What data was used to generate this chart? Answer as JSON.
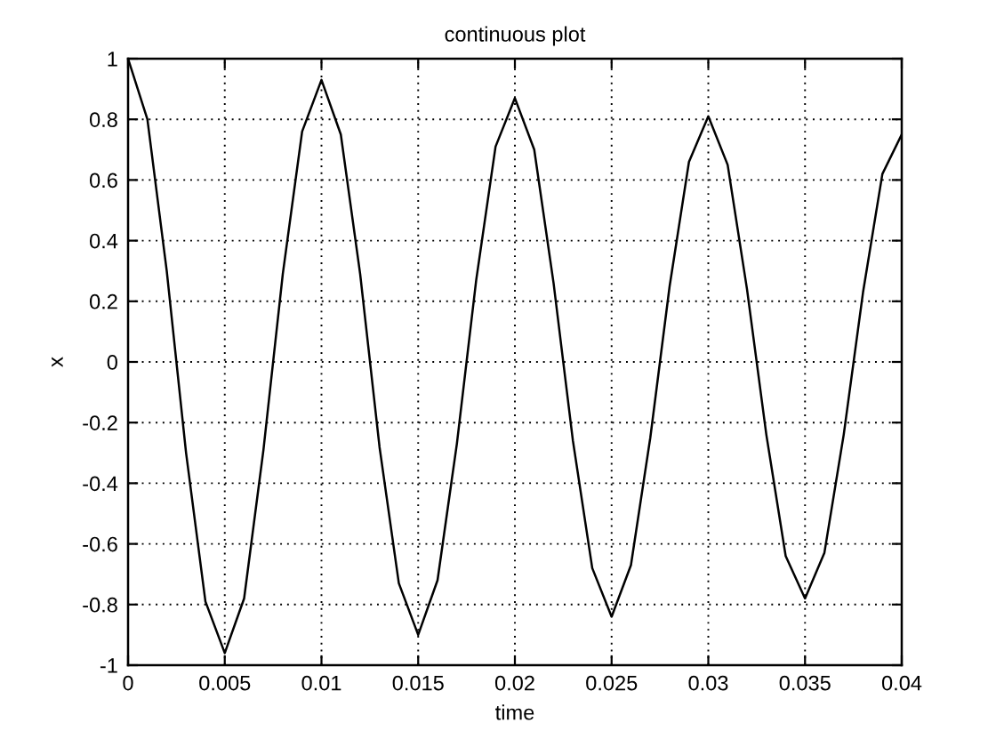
{
  "chart_data": {
    "type": "line",
    "title": "continuous plot",
    "xlabel": "time",
    "ylabel": "x",
    "x": [
      0,
      0.001,
      0.002,
      0.003,
      0.004,
      0.005,
      0.006,
      0.007,
      0.008,
      0.009,
      0.01,
      0.011,
      0.012,
      0.013,
      0.014,
      0.015,
      0.016,
      0.017,
      0.018,
      0.019,
      0.02,
      0.021,
      0.022,
      0.023,
      0.024,
      0.025,
      0.026,
      0.027,
      0.028,
      0.029,
      0.03,
      0.031,
      0.032,
      0.033,
      0.034,
      0.035,
      0.036,
      0.037,
      0.038,
      0.039,
      0.04
    ],
    "values": [
      1.0,
      0.8,
      0.3,
      -0.3,
      -0.79,
      -0.96,
      -0.78,
      -0.29,
      0.29,
      0.76,
      0.93,
      0.75,
      0.29,
      -0.28,
      -0.73,
      -0.9,
      -0.72,
      -0.27,
      0.27,
      0.71,
      0.87,
      0.7,
      0.26,
      -0.26,
      -0.68,
      -0.84,
      -0.67,
      -0.25,
      0.25,
      0.66,
      0.81,
      0.65,
      0.24,
      -0.24,
      -0.64,
      -0.78,
      -0.63,
      -0.24,
      0.23,
      0.62,
      0.75
    ],
    "color": "#000000",
    "line_style": "solid",
    "xlim": [
      0,
      0.04
    ],
    "ylim": [
      -1,
      1
    ],
    "xticks": [
      0,
      0.005,
      0.01,
      0.015,
      0.02,
      0.025,
      0.03,
      0.035,
      0.04
    ],
    "yticks": [
      -1,
      -0.8,
      -0.6,
      -0.4,
      -0.2,
      0,
      0.2,
      0.4,
      0.6,
      0.8,
      1
    ],
    "grid": true
  }
}
